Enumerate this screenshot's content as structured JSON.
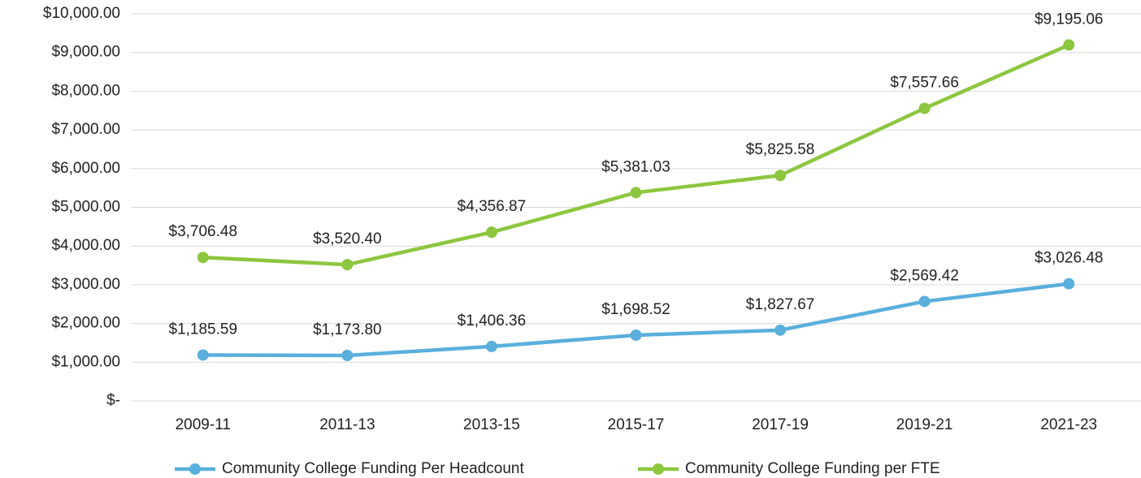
{
  "chart_data": {
    "type": "line",
    "categories": [
      "2009-11",
      "2011-13",
      "2013-15",
      "2015-17",
      "2017-19",
      "2019-21",
      "2021-23"
    ],
    "series": [
      {
        "name": "Community College Funding Per Headcount",
        "color": "#5aafdc",
        "values": [
          1185.59,
          1173.8,
          1406.36,
          1698.52,
          1827.67,
          2569.42,
          3026.48
        ],
        "value_labels": [
          "$1,185.59",
          "$1,173.80",
          "$1,406.36",
          "$1,698.52",
          "$1,827.67",
          "$2,569.42",
          "$3,026.48"
        ]
      },
      {
        "name": "Community College Funding per FTE",
        "color": "#8dc63f",
        "values": [
          3706.48,
          3520.4,
          4356.87,
          5381.03,
          5825.58,
          7557.66,
          9195.06
        ],
        "value_labels": [
          "$3,706.48",
          "$3,520.40",
          "$4,356.87",
          "$5,381.03",
          "$5,825.58",
          "$7,557.66",
          "$9,195.06"
        ]
      }
    ],
    "ylim": [
      0,
      10000
    ],
    "yticks": [
      {
        "value": 0,
        "label": "$-"
      },
      {
        "value": 1000,
        "label": "$1,000.00"
      },
      {
        "value": 2000,
        "label": "$2,000.00"
      },
      {
        "value": 3000,
        "label": "$3,000.00"
      },
      {
        "value": 4000,
        "label": "$4,000.00"
      },
      {
        "value": 5000,
        "label": "$5,000.00"
      },
      {
        "value": 6000,
        "label": "$6,000.00"
      },
      {
        "value": 7000,
        "label": "$7,000.00"
      },
      {
        "value": 8000,
        "label": "$8,000.00"
      },
      {
        "value": 9000,
        "label": "$9,000.00"
      },
      {
        "value": 10000,
        "label": "$10,000.00"
      }
    ],
    "grid": true,
    "legend": "bottom"
  }
}
